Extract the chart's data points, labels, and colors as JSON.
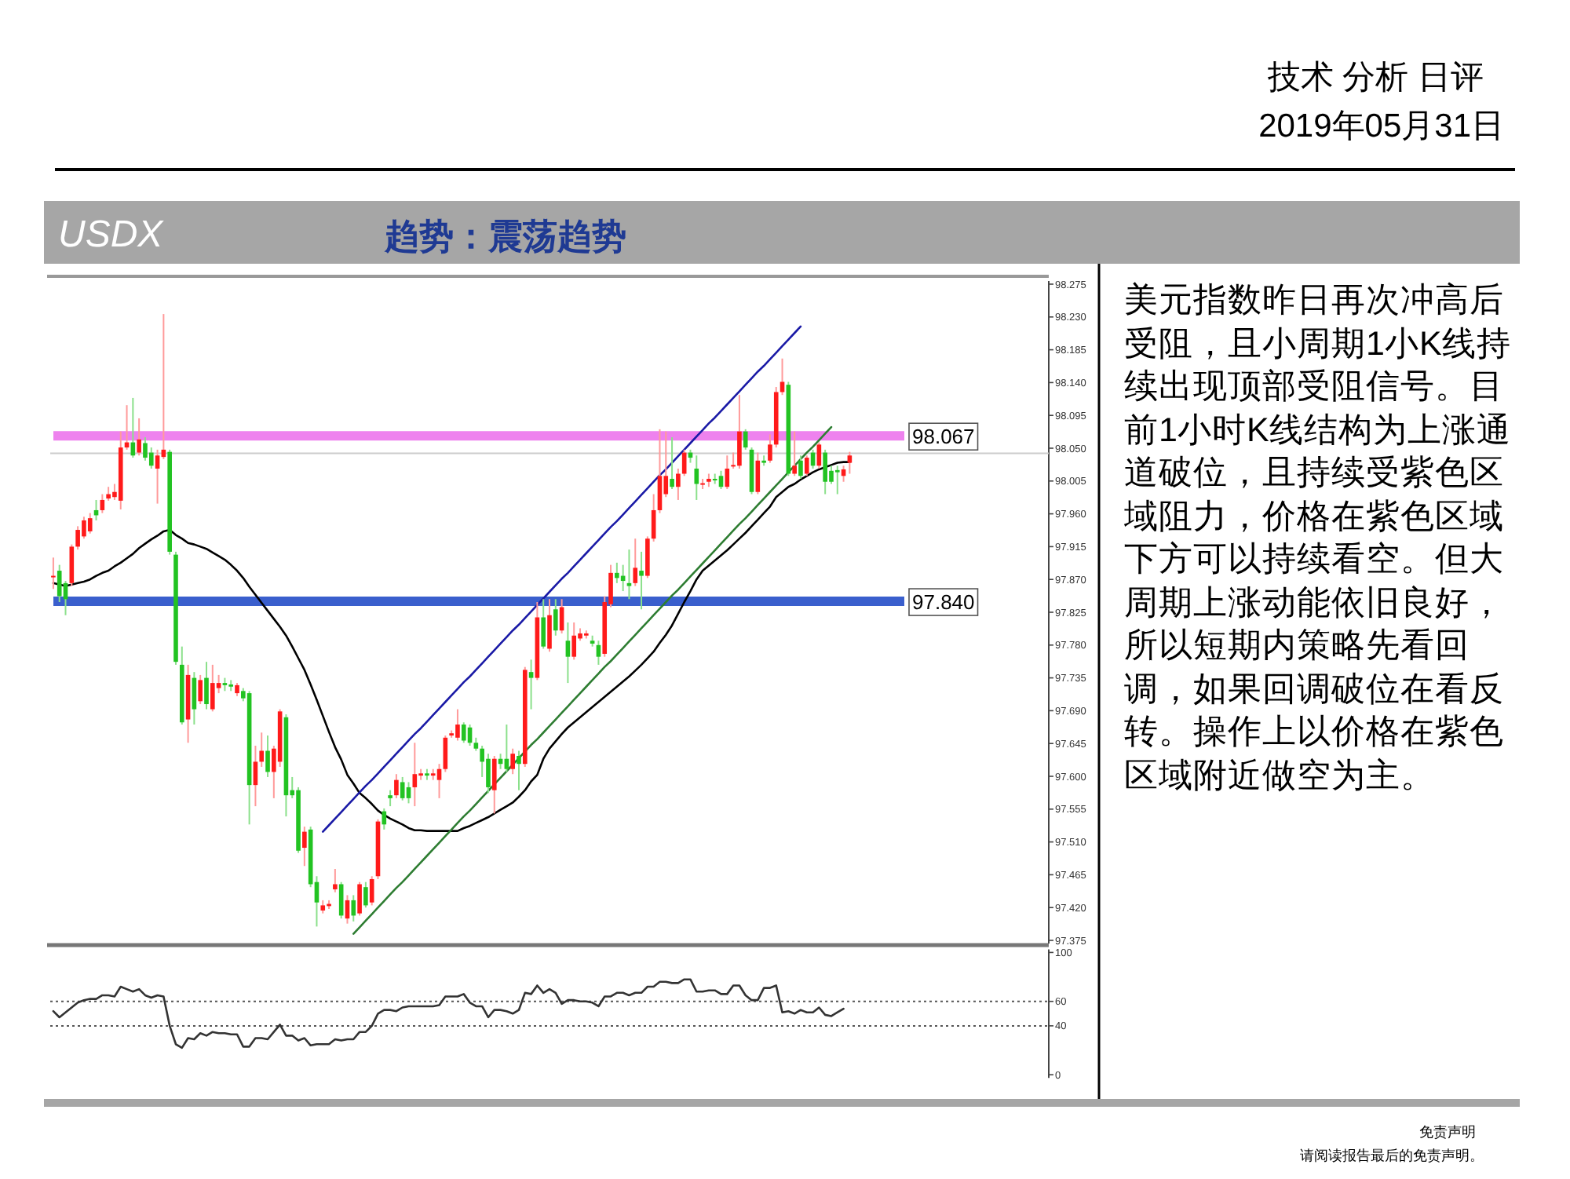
{
  "chart_data": [
    {
      "type": "candlestick",
      "title": "USDX",
      "subtitle": "趋势：震荡趋势",
      "annotations": [
        "技术 分析 日评",
        "2019年05月31日",
        "美元指数昨日再次冲高后受阻，且小周期1小K线持续出现顶部受阻信号。目前1小时K线结构为上涨通道破位，且持续受紫色区域阻力，价格在紫色区域下方可以持续看空。但大周期上涨动能依旧良好，所以短期内策略先看回调，如果回调破位在看反转。操作上以价格在紫色区域附近做空为主。",
        "免责声明",
        "请阅读报告最后的免责声明。"
      ],
      "categories": [
        null,
        null,
        null,
        null,
        null,
        null,
        null,
        null,
        null,
        null,
        null,
        null,
        null,
        null,
        null,
        null,
        null,
        null,
        null,
        null,
        null,
        null,
        null,
        null,
        null,
        null,
        null,
        null,
        null,
        null,
        null,
        null,
        null,
        null,
        null,
        null,
        null,
        null,
        null,
        null,
        null,
        null,
        null,
        null,
        null,
        null,
        null,
        null,
        null,
        null,
        null,
        null,
        null,
        null,
        null,
        null,
        null,
        null,
        null,
        null,
        null,
        null,
        null,
        null,
        null,
        null,
        null,
        null,
        null,
        null,
        null,
        null,
        null,
        null,
        null,
        null,
        null,
        null,
        null,
        null,
        null,
        null,
        null,
        null,
        null,
        null,
        null,
        null,
        null,
        null,
        null,
        null,
        null,
        null,
        null,
        null,
        null,
        null,
        null,
        null,
        null,
        null,
        null,
        null,
        null,
        null,
        null,
        null,
        null,
        null,
        null,
        null,
        null,
        null,
        null,
        null,
        null,
        null,
        null,
        null,
        null,
        null,
        null,
        null,
        null,
        null,
        null,
        null,
        null,
        null,
        null,
        null,
        null,
        null,
        null,
        null,
        null,
        null,
        null,
        null,
        null,
        null,
        null,
        null,
        null,
        null,
        null,
        null,
        null,
        null,
        null,
        null,
        null,
        null,
        null,
        null,
        null,
        null,
        null,
        null,
        null,
        null,
        null
      ],
      "ohlc": [
        [
          97.873,
          97.9,
          97.857,
          97.875
        ],
        [
          97.882,
          97.89,
          97.839,
          97.847
        ],
        [
          97.865,
          97.868,
          97.821,
          97.843
        ],
        [
          97.865,
          97.918,
          97.861,
          97.915
        ],
        [
          97.915,
          97.943,
          97.911,
          97.938
        ],
        [
          97.929,
          97.956,
          97.926,
          97.951
        ],
        [
          97.936,
          97.961,
          97.933,
          97.954
        ],
        [
          97.965,
          97.979,
          97.951,
          97.958
        ],
        [
          97.965,
          97.987,
          97.961,
          97.979
        ],
        [
          97.981,
          97.997,
          97.978,
          97.987
        ],
        [
          97.983,
          98.001,
          97.979,
          97.99
        ],
        [
          97.978,
          98.073,
          97.966,
          98.051
        ],
        [
          98.051,
          98.109,
          98.048,
          98.058
        ],
        [
          98.058,
          98.119,
          98.037,
          98.04
        ],
        [
          98.044,
          98.091,
          98.04,
          98.062
        ],
        [
          98.057,
          98.065,
          98.033,
          98.037
        ],
        [
          98.044,
          98.051,
          98.022,
          98.026
        ],
        [
          98.022,
          98.048,
          97.974,
          98.04
        ],
        [
          98.038,
          98.234,
          98.035,
          98.048
        ],
        [
          98.045,
          98.048,
          97.904,
          97.908
        ],
        [
          97.904,
          97.908,
          97.753,
          97.757
        ],
        [
          97.753,
          97.778,
          97.671,
          97.674
        ],
        [
          97.678,
          97.753,
          97.646,
          97.739
        ],
        [
          97.735,
          97.743,
          97.671,
          97.692
        ],
        [
          97.703,
          97.739,
          97.699,
          97.732
        ],
        [
          97.735,
          97.757,
          97.692,
          97.699
        ],
        [
          97.692,
          97.753,
          97.689,
          97.728
        ],
        [
          97.721,
          97.739,
          97.714,
          97.728
        ],
        [
          97.728,
          97.735,
          97.717,
          97.725
        ],
        [
          97.726,
          97.732,
          97.717,
          97.723
        ],
        [
          97.714,
          97.728,
          97.71,
          97.725
        ],
        [
          97.717,
          97.721,
          97.703,
          97.707
        ],
        [
          97.714,
          97.717,
          97.534,
          97.588
        ],
        [
          97.588,
          97.642,
          97.559,
          97.62
        ],
        [
          97.62,
          97.66,
          97.613,
          97.635
        ],
        [
          97.635,
          97.656,
          97.599,
          97.606
        ],
        [
          97.606,
          97.642,
          97.57,
          97.638
        ],
        [
          97.62,
          97.692,
          97.613,
          97.689
        ],
        [
          97.681,
          97.685,
          97.545,
          97.574
        ],
        [
          97.581,
          97.599,
          97.57,
          97.574
        ],
        [
          97.581,
          97.585,
          97.495,
          97.498
        ],
        [
          97.502,
          97.531,
          97.477,
          97.524
        ],
        [
          97.527,
          97.531,
          97.448,
          97.452
        ],
        [
          97.455,
          97.463,
          97.394,
          97.427
        ],
        [
          97.416,
          97.43,
          97.412,
          97.423
        ],
        [
          97.422,
          97.43,
          97.418,
          97.425
        ],
        [
          97.445,
          97.473,
          97.441,
          97.452
        ],
        [
          97.452,
          97.455,
          97.405,
          97.409
        ],
        [
          97.405,
          97.437,
          97.398,
          97.43
        ],
        [
          97.43,
          97.437,
          97.401,
          97.409
        ],
        [
          97.412,
          97.455,
          97.409,
          97.452
        ],
        [
          97.448,
          97.455,
          97.42,
          97.423
        ],
        [
          97.427,
          97.463,
          97.423,
          97.459
        ],
        [
          97.463,
          97.541,
          97.459,
          97.538
        ],
        [
          97.552,
          97.556,
          97.527,
          97.534
        ],
        [
          97.574,
          97.581,
          97.559,
          97.57
        ],
        [
          97.574,
          97.603,
          97.57,
          97.595
        ],
        [
          97.592,
          97.599,
          97.567,
          97.57
        ],
        [
          97.585,
          97.592,
          97.563,
          97.57
        ],
        [
          97.585,
          97.646,
          97.559,
          97.603
        ],
        [
          97.601,
          97.61,
          97.595,
          97.604
        ],
        [
          97.604,
          97.61,
          97.595,
          97.601
        ],
        [
          97.601,
          97.61,
          97.595,
          97.604
        ],
        [
          97.595,
          97.617,
          97.57,
          97.61
        ],
        [
          97.61,
          97.656,
          97.606,
          97.653
        ],
        [
          97.656,
          97.663,
          97.653,
          97.659
        ],
        [
          97.653,
          97.692,
          97.649,
          97.671
        ],
        [
          97.671,
          97.674,
          97.646,
          97.649
        ],
        [
          97.667,
          97.671,
          97.642,
          97.646
        ],
        [
          97.646,
          97.653,
          97.635,
          97.638
        ],
        [
          97.638,
          97.642,
          97.599,
          97.62
        ],
        [
          97.624,
          97.631,
          97.577,
          97.585
        ],
        [
          97.581,
          97.628,
          97.549,
          97.624
        ],
        [
          97.624,
          97.631,
          97.61,
          97.617
        ],
        [
          97.624,
          97.671,
          97.606,
          97.61
        ],
        [
          97.61,
          97.638,
          97.603,
          97.631
        ],
        [
          97.628,
          97.635,
          97.581,
          97.617
        ],
        [
          97.617,
          97.75,
          97.613,
          97.746
        ],
        [
          97.743,
          97.76,
          97.692,
          97.735
        ],
        [
          97.735,
          97.839,
          97.732,
          97.818
        ],
        [
          97.818,
          97.843,
          97.775,
          97.778
        ],
        [
          97.775,
          97.843,
          97.771,
          97.821
        ],
        [
          97.829,
          97.843,
          97.793,
          97.8
        ],
        [
          97.8,
          97.843,
          97.796,
          97.832
        ],
        [
          97.786,
          97.811,
          97.728,
          97.764
        ],
        [
          97.764,
          97.811,
          97.76,
          97.793
        ],
        [
          97.789,
          97.803,
          97.786,
          97.796
        ],
        [
          97.793,
          97.8,
          97.789,
          97.796
        ],
        [
          97.786,
          97.793,
          97.778,
          97.782
        ],
        [
          97.78,
          97.786,
          97.753,
          97.764
        ],
        [
          97.768,
          97.847,
          97.764,
          97.839
        ],
        [
          97.836,
          97.89,
          97.832,
          97.879
        ],
        [
          97.879,
          97.893,
          97.865,
          97.872
        ],
        [
          97.875,
          97.89,
          97.854,
          97.868
        ],
        [
          97.865,
          97.911,
          97.843,
          97.861
        ],
        [
          97.865,
          97.926,
          97.861,
          97.886
        ],
        [
          97.882,
          97.908,
          97.829,
          97.875
        ],
        [
          97.875,
          97.929,
          97.872,
          97.926
        ],
        [
          97.926,
          97.987,
          97.922,
          97.965
        ],
        [
          97.965,
          98.076,
          97.961,
          98.012
        ],
        [
          97.987,
          98.073,
          97.983,
          98.012
        ],
        [
          98.008,
          98.065,
          97.994,
          97.997
        ],
        [
          97.997,
          98.022,
          97.979,
          98.015
        ],
        [
          98.015,
          98.048,
          98.012,
          98.044
        ],
        [
          98.044,
          98.048,
          98.03,
          98.037
        ],
        [
          98.022,
          98.04,
          97.979,
          98.001
        ],
        [
          98.0,
          98.008,
          97.994,
          98.002
        ],
        [
          98.004,
          98.015,
          97.997,
          98.008
        ],
        [
          98.008,
          98.015,
          98.001,
          98.007
        ],
        [
          98.012,
          98.019,
          97.994,
          97.997
        ],
        [
          97.997,
          98.04,
          97.994,
          98.022
        ],
        [
          98.025,
          98.044,
          98.022,
          98.027
        ],
        [
          98.026,
          98.123,
          98.022,
          98.073
        ],
        [
          98.073,
          98.076,
          98.048,
          98.051
        ],
        [
          98.048,
          98.051,
          97.987,
          97.99
        ],
        [
          97.99,
          98.044,
          97.987,
          98.033
        ],
        [
          98.033,
          98.04,
          98.026,
          98.03
        ],
        [
          98.033,
          98.069,
          98.03,
          98.055
        ],
        [
          98.055,
          98.134,
          98.051,
          98.127
        ],
        [
          98.127,
          98.173,
          98.123,
          98.141
        ],
        [
          98.137,
          98.141,
          98.012,
          98.015
        ],
        [
          98.015,
          98.073,
          98.012,
          98.026
        ],
        [
          98.033,
          98.04,
          98.008,
          98.012
        ],
        [
          98.015,
          98.04,
          98.012,
          98.037
        ],
        [
          98.044,
          98.048,
          98.022,
          98.026
        ],
        [
          98.026,
          98.058,
          98.022,
          98.055
        ],
        [
          98.044,
          98.048,
          97.987,
          98.004
        ],
        [
          98.019,
          98.026,
          98.001,
          98.004
        ],
        [
          98.02,
          98.026,
          97.987,
          98.017
        ],
        [
          98.012,
          98.026,
          98.004,
          98.021
        ],
        [
          98.03,
          98.045,
          98.015,
          98.04
        ],
        null,
        null,
        null,
        null,
        null,
        null,
        null,
        null,
        null,
        null,
        null,
        null,
        null,
        null,
        null,
        null,
        null,
        null,
        null,
        null,
        null,
        null,
        null,
        null,
        null,
        null,
        null,
        null,
        null,
        null,
        null,
        null
      ],
      "series": [
        {
          "type": "line",
          "color": "#000000",
          "values": [
            97.865,
            97.863,
            97.861,
            97.863,
            97.865,
            97.867,
            97.87,
            97.875,
            97.879,
            97.882,
            97.888,
            97.893,
            97.899,
            97.905,
            97.913,
            97.919,
            97.925,
            97.93,
            97.936,
            97.938,
            97.931,
            97.926,
            97.92,
            97.918,
            97.915,
            97.912,
            97.907,
            97.902,
            97.897,
            97.89,
            97.882,
            97.872,
            97.86,
            97.849,
            97.838,
            97.827,
            97.816,
            97.805,
            97.793,
            97.778,
            97.762,
            97.746,
            97.726,
            97.705,
            97.683,
            97.661,
            97.64,
            97.623,
            97.602,
            97.59,
            97.577,
            97.57,
            97.562,
            97.553,
            97.547,
            97.542,
            97.538,
            97.534,
            97.529,
            97.526,
            97.526,
            97.525,
            97.525,
            97.525,
            97.525,
            97.525,
            97.525,
            97.529,
            97.532,
            97.536,
            97.54,
            97.544,
            97.549,
            97.554,
            97.559,
            97.564,
            97.572,
            97.581,
            97.593,
            97.602,
            97.624,
            97.638,
            97.648,
            97.658,
            97.667,
            97.674,
            97.681,
            97.688,
            97.695,
            97.702,
            97.709,
            97.716,
            97.723,
            97.73,
            97.737,
            97.745,
            97.753,
            97.762,
            97.771,
            97.783,
            97.794,
            97.807,
            97.823,
            97.839,
            97.854,
            97.87,
            97.882,
            97.889,
            97.896,
            97.903,
            97.91,
            97.918,
            97.926,
            97.934,
            97.943,
            97.952,
            97.961,
            97.97,
            97.983,
            97.99,
            97.997,
            98.001,
            98.007,
            98.012,
            98.017,
            98.021,
            98.024,
            98.027,
            98.03,
            98.031,
            98.031,
            null,
            null,
            null,
            null,
            null,
            null,
            null,
            null,
            null,
            null,
            null,
            null,
            null,
            null,
            null,
            null,
            null,
            null,
            null,
            null,
            null,
            null,
            null,
            null,
            null,
            null,
            null,
            null,
            null,
            null,
            null,
            null
          ]
        },
        {
          "type": "line",
          "color": "#1a1aa6",
          "values": [
            null,
            null,
            null,
            null,
            null,
            null,
            null,
            null,
            null,
            null,
            null,
            null,
            null,
            null,
            null,
            null,
            null,
            null,
            null,
            null,
            null,
            null,
            null,
            null,
            null,
            null,
            null,
            null,
            null,
            null,
            null,
            null,
            null,
            null,
            null,
            null,
            null,
            null,
            null,
            null,
            null,
            null,
            null,
            null,
            97.524,
            97.533,
            97.542,
            97.551,
            97.56,
            97.569,
            97.578,
            97.587,
            97.595,
            97.604,
            97.613,
            97.622,
            97.631,
            97.64,
            97.649,
            97.658,
            97.666,
            97.675,
            97.684,
            97.693,
            97.702,
            97.711,
            97.72,
            97.729,
            97.737,
            97.746,
            97.755,
            97.764,
            97.773,
            97.782,
            97.791,
            97.8,
            97.808,
            97.817,
            97.826,
            97.835,
            97.844,
            97.853,
            97.862,
            97.871,
            97.879,
            97.888,
            97.897,
            97.906,
            97.915,
            97.924,
            97.933,
            97.942,
            97.95,
            97.959,
            97.968,
            97.977,
            97.986,
            97.995,
            98.004,
            98.013,
            98.021,
            98.03,
            98.039,
            98.048,
            98.057,
            98.066,
            98.075,
            98.084,
            98.092,
            98.101,
            98.11,
            98.119,
            98.128,
            98.137,
            98.146,
            98.155,
            98.163,
            98.172,
            98.181,
            98.19,
            98.199,
            98.208,
            98.217,
            null,
            null,
            null,
            null,
            null,
            null,
            null,
            null,
            null,
            null,
            null,
            null,
            null,
            null,
            null,
            null,
            null,
            null,
            null,
            null,
            null,
            null,
            null,
            null,
            null,
            null,
            null,
            null,
            null,
            null,
            null,
            null,
            null,
            null,
            null,
            null,
            null,
            null,
            null,
            null
          ]
        },
        {
          "type": "line",
          "color": "#2e7d32",
          "values": [
            null,
            null,
            null,
            null,
            null,
            null,
            null,
            null,
            null,
            null,
            null,
            null,
            null,
            null,
            null,
            null,
            null,
            null,
            null,
            null,
            null,
            null,
            null,
            null,
            null,
            null,
            null,
            null,
            null,
            null,
            null,
            null,
            null,
            null,
            null,
            null,
            null,
            null,
            null,
            null,
            null,
            null,
            null,
            null,
            null,
            null,
            null,
            null,
            null,
            97.384,
            97.393,
            97.402,
            97.411,
            97.42,
            97.429,
            97.438,
            97.447,
            97.455,
            97.464,
            97.473,
            97.482,
            97.491,
            97.5,
            97.509,
            97.518,
            97.527,
            97.536,
            97.545,
            97.553,
            97.562,
            97.571,
            97.58,
            97.589,
            97.598,
            97.607,
            97.616,
            97.625,
            97.634,
            97.643,
            97.651,
            97.66,
            97.669,
            97.678,
            97.687,
            97.696,
            97.705,
            97.714,
            97.723,
            97.732,
            97.741,
            97.75,
            97.758,
            97.767,
            97.776,
            97.785,
            97.794,
            97.803,
            97.812,
            97.821,
            97.83,
            97.839,
            97.848,
            97.856,
            97.865,
            97.874,
            97.883,
            97.892,
            97.901,
            97.91,
            97.919,
            97.928,
            97.937,
            97.946,
            97.954,
            97.963,
            97.972,
            97.981,
            97.99,
            97.999,
            98.008,
            98.017,
            98.026,
            98.035,
            98.044,
            98.052,
            98.061,
            98.07,
            98.079,
            null,
            null,
            null,
            null,
            null,
            null,
            null,
            null,
            null,
            null,
            null,
            null,
            null,
            null,
            null,
            null,
            null,
            null,
            null,
            null,
            null,
            null,
            null,
            null,
            null,
            null,
            null,
            null,
            null,
            null,
            null,
            null,
            null,
            null,
            null
          ]
        }
      ],
      "ref_lines": [
        {
          "axis": "y",
          "value": 98.067,
          "label": "98.067",
          "color": "#ee82ee"
        },
        {
          "axis": "y",
          "value": 97.84,
          "label": "97.840",
          "color": "#3a5fcd"
        },
        {
          "axis": "y",
          "value": 98.043,
          "color": "#cccccc"
        }
      ],
      "ylim": [
        97.375,
        98.275
      ],
      "yticks": [
        98.275,
        {
          "value": 98.23,
          "label": "98.230"
        },
        98.185,
        {
          "value": 98.14,
          "label": "98.140"
        },
        98.095,
        {
          "value": 98.05,
          "label": "98.050"
        },
        98.005,
        {
          "value": 97.96,
          "label": "97.960"
        },
        97.915,
        {
          "value": 97.87,
          "label": "97.870"
        },
        97.825,
        {
          "value": 97.78,
          "label": "97.780"
        },
        97.735,
        {
          "value": 97.69,
          "label": "97.690"
        },
        97.645,
        {
          "value": 97.6,
          "label": "97.600"
        },
        97.555,
        {
          "value": 97.51,
          "label": "97.510"
        },
        97.465,
        {
          "value": 97.42,
          "label": "97.420"
        },
        97.375
      ]
    },
    {
      "type": "line",
      "categories": [
        null,
        null,
        null,
        null,
        null,
        null,
        null,
        null,
        null,
        null,
        null,
        null,
        null,
        null,
        null,
        null,
        null,
        null,
        null,
        null,
        null,
        null,
        null,
        null,
        null,
        null,
        null,
        null,
        null,
        null,
        null,
        null,
        null,
        null,
        null,
        null,
        null,
        null,
        null,
        null,
        null,
        null,
        null,
        null,
        null,
        null,
        null,
        null,
        null,
        null,
        null,
        null,
        null,
        null,
        null,
        null,
        null,
        null,
        null,
        null,
        null,
        null,
        null,
        null,
        null,
        null,
        null,
        null,
        null,
        null,
        null,
        null,
        null,
        null,
        null,
        null,
        null,
        null,
        null,
        null,
        null,
        null,
        null,
        null,
        null,
        null,
        null,
        null,
        null,
        null,
        null,
        null,
        null,
        null,
        null,
        null,
        null,
        null,
        null,
        null,
        null,
        null,
        null,
        null,
        null,
        null,
        null,
        null,
        null,
        null,
        null,
        null,
        null,
        null,
        null,
        null,
        null,
        null,
        null,
        null,
        null,
        null,
        null,
        null,
        null,
        null,
        null,
        null,
        null,
        null,
        null,
        null,
        null,
        null,
        null,
        null,
        null,
        null,
        null,
        null,
        null,
        null,
        null,
        null,
        null,
        null,
        null,
        null,
        null,
        null,
        null,
        null,
        null,
        null,
        null,
        null,
        null,
        null,
        null,
        null,
        null,
        null,
        null
      ],
      "series": [
        {
          "color": "#333333",
          "values": [
            52,
            47,
            51,
            55,
            59,
            61,
            62,
            62,
            65,
            65,
            64,
            72,
            70,
            68,
            70,
            65,
            63,
            65,
            64,
            40,
            25,
            22,
            30,
            29,
            34,
            32,
            35,
            34,
            34,
            33,
            33,
            23,
            23,
            30,
            30,
            29,
            35,
            41,
            32,
            32,
            28,
            30,
            24,
            25,
            25,
            25,
            29,
            28,
            29,
            29,
            35,
            35,
            40,
            50,
            53,
            53,
            52,
            55,
            56,
            56,
            56,
            56,
            56,
            57,
            64,
            64,
            64,
            66,
            59,
            56,
            56,
            47,
            53,
            53,
            52,
            50,
            53,
            67,
            66,
            73,
            67,
            70,
            67,
            58,
            61,
            61,
            60,
            60,
            59,
            56,
            64,
            64,
            67,
            67,
            65,
            67,
            67,
            72,
            72,
            76,
            76,
            75,
            75,
            78,
            78,
            68,
            68,
            69,
            69,
            66,
            66,
            73,
            73,
            65,
            61,
            61,
            71,
            71,
            73,
            51,
            52,
            50,
            53,
            51,
            51,
            55,
            49,
            48,
            51,
            54,
            null,
            null,
            null,
            null,
            null,
            null,
            null,
            null,
            null,
            null,
            null,
            null,
            null,
            null,
            null,
            null,
            null,
            null,
            null,
            null,
            null,
            null,
            null,
            null,
            null,
            null,
            null,
            null,
            null,
            null,
            null,
            null,
            null
          ]
        }
      ],
      "ref_lines": [
        {
          "axis": "y",
          "value": 60,
          "line_style": "dotted",
          "color": "#555555"
        },
        {
          "axis": "y",
          "value": 40,
          "line_style": "dotted",
          "color": "#555555"
        }
      ],
      "ylim": [
        0,
        100
      ],
      "yticks": [
        0,
        40,
        60,
        100
      ]
    }
  ]
}
